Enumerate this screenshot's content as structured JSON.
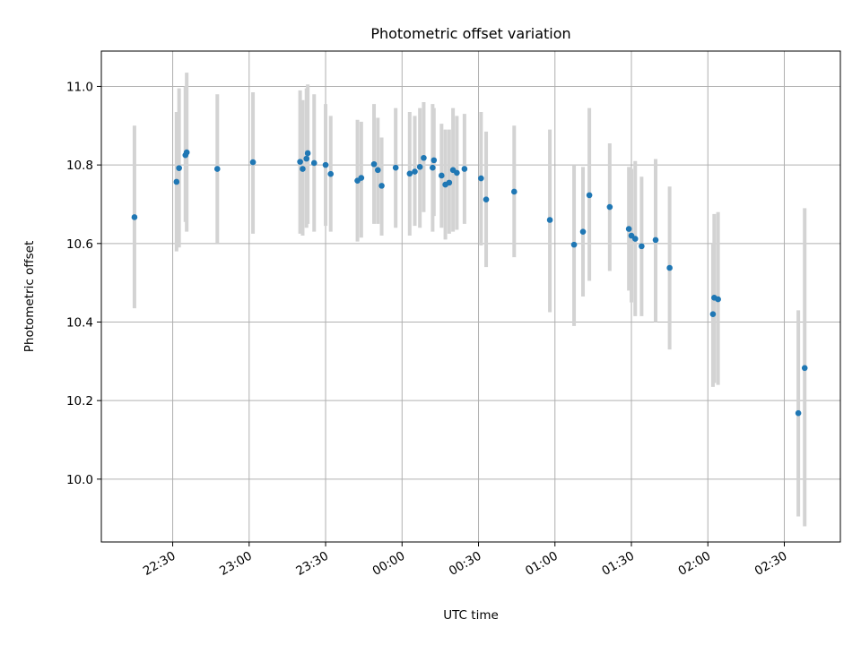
{
  "chart_data": {
    "type": "scatter",
    "title": "Photometric offset variation",
    "xlabel": "UTC time",
    "ylabel": "Photometric offset",
    "x_tick_labels": [
      "22:30",
      "23:00",
      "23:30",
      "00:00",
      "00:30",
      "01:00",
      "01:30",
      "02:00",
      "02:30"
    ],
    "y_tick_labels": [
      "10.0",
      "10.2",
      "10.4",
      "10.6",
      "10.8",
      "11.0"
    ],
    "x_ticks": [
      -90,
      -60,
      -30,
      0,
      30,
      60,
      90,
      120,
      150
    ],
    "y_ticks": [
      10.0,
      10.2,
      10.4,
      10.6,
      10.8,
      11.0
    ],
    "xlim": [
      -118,
      172
    ],
    "ylim": [
      9.84,
      11.09
    ],
    "x_axis_note": "minutes relative to 00:00 UTC",
    "grid": true,
    "colors": {
      "points": "#1f77b4",
      "error_bars": "#d3d3d3"
    },
    "points": [
      {
        "x": -105,
        "y": 10.667,
        "lo": 10.435,
        "hi": 10.9
      },
      {
        "x": -88.5,
        "y": 10.757,
        "lo": 10.58,
        "hi": 10.935
      },
      {
        "x": -87.5,
        "y": 10.792,
        "lo": 10.59,
        "hi": 10.995
      },
      {
        "x": -85,
        "y": 10.825,
        "lo": 10.655,
        "hi": 11.0
      },
      {
        "x": -84.5,
        "y": 10.832,
        "lo": 10.63,
        "hi": 11.035
      },
      {
        "x": -72.5,
        "y": 10.79,
        "lo": 10.6,
        "hi": 10.98
      },
      {
        "x": -58.5,
        "y": 10.807,
        "lo": 10.625,
        "hi": 10.985
      },
      {
        "x": -40,
        "y": 10.808,
        "lo": 10.625,
        "hi": 10.99
      },
      {
        "x": -39,
        "y": 10.79,
        "lo": 10.62,
        "hi": 10.965
      },
      {
        "x": -37.5,
        "y": 10.816,
        "lo": 10.64,
        "hi": 10.995
      },
      {
        "x": -37,
        "y": 10.83,
        "lo": 10.65,
        "hi": 11.005
      },
      {
        "x": -34.5,
        "y": 10.805,
        "lo": 10.63,
        "hi": 10.98
      },
      {
        "x": -30,
        "y": 10.8,
        "lo": 10.645,
        "hi": 10.955
      },
      {
        "x": -28,
        "y": 10.777,
        "lo": 10.63,
        "hi": 10.925
      },
      {
        "x": -17.5,
        "y": 10.76,
        "lo": 10.605,
        "hi": 10.915
      },
      {
        "x": -16,
        "y": 10.767,
        "lo": 10.615,
        "hi": 10.91
      },
      {
        "x": -11,
        "y": 10.802,
        "lo": 10.65,
        "hi": 10.955
      },
      {
        "x": -9.5,
        "y": 10.787,
        "lo": 10.65,
        "hi": 10.92
      },
      {
        "x": -8,
        "y": 10.747,
        "lo": 10.62,
        "hi": 10.87
      },
      {
        "x": -2.5,
        "y": 10.793,
        "lo": 10.64,
        "hi": 10.945
      },
      {
        "x": 3,
        "y": 10.778,
        "lo": 10.62,
        "hi": 10.935
      },
      {
        "x": 5,
        "y": 10.783,
        "lo": 10.645,
        "hi": 10.925
      },
      {
        "x": 7,
        "y": 10.795,
        "lo": 10.64,
        "hi": 10.945
      },
      {
        "x": 8.5,
        "y": 10.818,
        "lo": 10.68,
        "hi": 10.96
      },
      {
        "x": 12,
        "y": 10.793,
        "lo": 10.63,
        "hi": 10.955
      },
      {
        "x": 12.5,
        "y": 10.812,
        "lo": 10.67,
        "hi": 10.945
      },
      {
        "x": 15.5,
        "y": 10.773,
        "lo": 10.64,
        "hi": 10.905
      },
      {
        "x": 17,
        "y": 10.75,
        "lo": 10.61,
        "hi": 10.89
      },
      {
        "x": 18.5,
        "y": 10.755,
        "lo": 10.625,
        "hi": 10.89
      },
      {
        "x": 20,
        "y": 10.787,
        "lo": 10.63,
        "hi": 10.945
      },
      {
        "x": 21.5,
        "y": 10.78,
        "lo": 10.635,
        "hi": 10.925
      },
      {
        "x": 24.5,
        "y": 10.79,
        "lo": 10.65,
        "hi": 10.93
      },
      {
        "x": 31,
        "y": 10.766,
        "lo": 10.595,
        "hi": 10.935
      },
      {
        "x": 33,
        "y": 10.712,
        "lo": 10.54,
        "hi": 10.885
      },
      {
        "x": 44,
        "y": 10.732,
        "lo": 10.565,
        "hi": 10.9
      },
      {
        "x": 58,
        "y": 10.66,
        "lo": 10.425,
        "hi": 10.89
      },
      {
        "x": 67.5,
        "y": 10.597,
        "lo": 10.39,
        "hi": 10.8
      },
      {
        "x": 71,
        "y": 10.63,
        "lo": 10.465,
        "hi": 10.795
      },
      {
        "x": 73.5,
        "y": 10.723,
        "lo": 10.505,
        "hi": 10.945
      },
      {
        "x": 81.5,
        "y": 10.693,
        "lo": 10.53,
        "hi": 10.855
      },
      {
        "x": 89,
        "y": 10.637,
        "lo": 10.48,
        "hi": 10.795
      },
      {
        "x": 90,
        "y": 10.62,
        "lo": 10.45,
        "hi": 10.79
      },
      {
        "x": 91.5,
        "y": 10.612,
        "lo": 10.415,
        "hi": 10.81
      },
      {
        "x": 94,
        "y": 10.593,
        "lo": 10.415,
        "hi": 10.77
      },
      {
        "x": 99.5,
        "y": 10.609,
        "lo": 10.4,
        "hi": 10.815
      },
      {
        "x": 105,
        "y": 10.538,
        "lo": 10.33,
        "hi": 10.745
      },
      {
        "x": 122,
        "y": 10.42,
        "lo": 10.235,
        "hi": 10.6
      },
      {
        "x": 122.5,
        "y": 10.462,
        "lo": 10.245,
        "hi": 10.675
      },
      {
        "x": 124,
        "y": 10.458,
        "lo": 10.24,
        "hi": 10.68
      },
      {
        "x": 155.5,
        "y": 10.168,
        "lo": 9.905,
        "hi": 10.43
      },
      {
        "x": 158,
        "y": 10.283,
        "lo": 9.88,
        "hi": 10.69
      }
    ]
  }
}
